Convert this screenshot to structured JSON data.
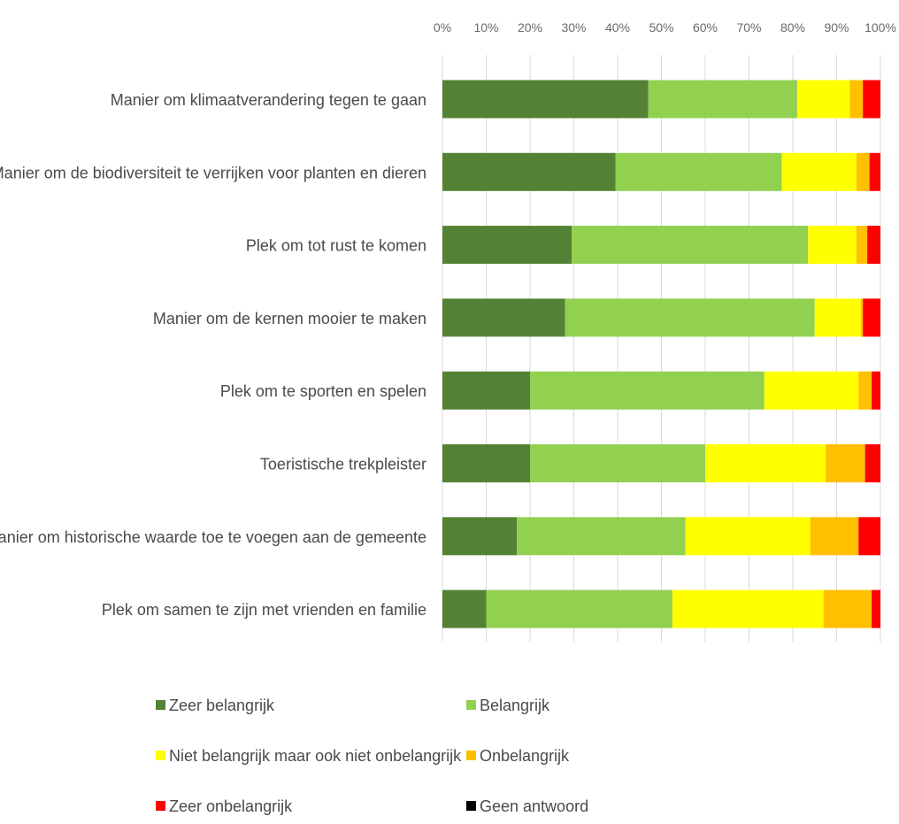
{
  "chart_data": {
    "type": "bar",
    "orientation": "horizontal",
    "stacked": "percent",
    "title": "",
    "xlabel": "",
    "ylabel": "",
    "xlim": [
      0,
      100
    ],
    "x_ticks": [
      "0%",
      "10%",
      "20%",
      "30%",
      "40%",
      "50%",
      "60%",
      "70%",
      "80%",
      "90%",
      "100%"
    ],
    "x_axis_position": "top",
    "grid": true,
    "legend_position": "bottom",
    "categories": [
      "Manier om klimaatverandering tegen te gaan",
      "Manier om de biodiversiteit te verrijken voor planten en dieren",
      "Plek om tot rust te komen",
      "Manier om de kernen mooier te maken",
      "Plek om te sporten en spelen",
      "Toeristische trekpleister",
      "Manier om historische waarde toe te voegen aan de gemeente",
      "Plek om samen te zijn met vrienden en familie"
    ],
    "series": [
      {
        "name": "Zeer belangrijk",
        "color": "#548235",
        "values": [
          47,
          39.5,
          29.5,
          28,
          20,
          20,
          17,
          10
        ]
      },
      {
        "name": "Belangrijk",
        "color": "#92d050",
        "values": [
          34,
          38,
          54,
          57,
          53.5,
          40,
          38.5,
          42.5
        ]
      },
      {
        "name": "Niet belangrijk maar ook niet onbelangrijk",
        "color": "#ffff00",
        "values": [
          12,
          17,
          11,
          10.5,
          21.5,
          27.5,
          28.5,
          34.5
        ]
      },
      {
        "name": "Onbelangrijk",
        "color": "#ffc000",
        "values": [
          3,
          3,
          2.5,
          0.5,
          3,
          9,
          11,
          11
        ]
      },
      {
        "name": "Zeer onbelangrijk",
        "color": "#ff0000",
        "values": [
          4,
          2.5,
          3,
          4,
          2,
          3.5,
          5,
          2
        ]
      },
      {
        "name": "Geen antwoord",
        "color": "#000000",
        "values": [
          0,
          0,
          0,
          0,
          0,
          0,
          0,
          0
        ]
      }
    ]
  }
}
